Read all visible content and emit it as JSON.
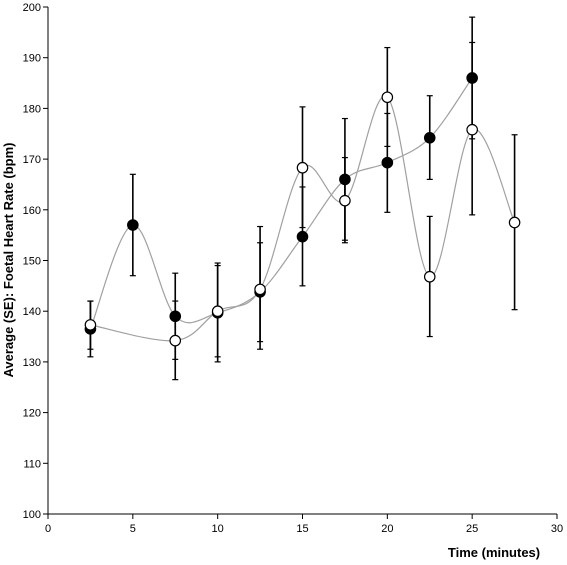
{
  "chart_data": {
    "type": "scatter",
    "xlabel": "Time (minutes)",
    "ylabel": "Average (SE): Foetal Heart Rate (bpm)",
    "xlim": [
      0,
      30
    ],
    "ylim": [
      100,
      200
    ],
    "x_ticks": [
      0,
      5,
      10,
      15,
      20,
      25,
      30
    ],
    "y_ticks": [
      100,
      110,
      120,
      130,
      140,
      150,
      160,
      170,
      180,
      190,
      200
    ],
    "grid": false,
    "legend": "none",
    "series": [
      {
        "marker": "filled-circle",
        "color": "#000000",
        "line_color": "#a0a0a0",
        "points": [
          {
            "x": 2.5,
            "y": 136.5,
            "lo": 131.0,
            "hi": 142.0
          },
          {
            "x": 5.0,
            "y": 157.0,
            "lo": 147.0,
            "hi": 167.0
          },
          {
            "x": 7.5,
            "y": 139.0,
            "lo": 130.5,
            "hi": 147.5
          },
          {
            "x": 10.0,
            "y": 139.7,
            "lo": 130.0,
            "hi": 149.5
          },
          {
            "x": 12.5,
            "y": 143.8,
            "lo": 134.0,
            "hi": 153.5
          },
          {
            "x": 15.0,
            "y": 154.7,
            "lo": 145.0,
            "hi": 164.5
          },
          {
            "x": 17.5,
            "y": 166.0,
            "lo": 154.0,
            "hi": 178.0
          },
          {
            "x": 20.0,
            "y": 169.3,
            "lo": 159.5,
            "hi": 179.0
          },
          {
            "x": 22.5,
            "y": 174.2,
            "lo": 166.0,
            "hi": 182.5
          },
          {
            "x": 25.0,
            "y": 186.0,
            "lo": 174.0,
            "hi": 198.0
          }
        ]
      },
      {
        "marker": "open-circle",
        "color": "#000000",
        "line_color": "#a0a0a0",
        "points": [
          {
            "x": 2.5,
            "y": 137.3,
            "lo": 132.5,
            "hi": 142.0
          },
          {
            "x": 7.5,
            "y": 134.2,
            "lo": 126.5,
            "hi": 142.0
          },
          {
            "x": 10.0,
            "y": 140.0,
            "lo": 131.0,
            "hi": 149.0
          },
          {
            "x": 12.5,
            "y": 144.3,
            "lo": 132.5,
            "hi": 156.7
          },
          {
            "x": 15.0,
            "y": 168.3,
            "lo": 156.5,
            "hi": 180.3
          },
          {
            "x": 17.5,
            "y": 161.8,
            "lo": 153.5,
            "hi": 170.3
          },
          {
            "x": 20.0,
            "y": 182.2,
            "lo": 172.5,
            "hi": 192.0
          },
          {
            "x": 22.5,
            "y": 146.8,
            "lo": 135.0,
            "hi": 158.7
          },
          {
            "x": 25.0,
            "y": 175.8,
            "lo": 159.0,
            "hi": 193.0
          },
          {
            "x": 27.5,
            "y": 157.5,
            "lo": 140.3,
            "hi": 174.8
          }
        ]
      }
    ]
  }
}
